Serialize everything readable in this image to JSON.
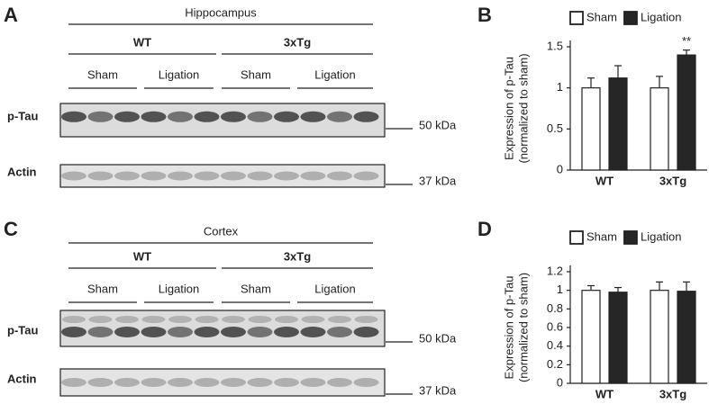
{
  "blots": [
    {
      "panel": "A",
      "title": "Hippocampus",
      "groups": [
        "WT",
        "3xTg"
      ],
      "conditions": [
        "Sham",
        "Ligation",
        "Sham",
        "Ligation"
      ],
      "rows": [
        {
          "label": "p-Tau",
          "marker": "50 kDa"
        },
        {
          "label": "Actin",
          "marker": "37 kDa"
        }
      ]
    },
    {
      "panel": "C",
      "title": "Cortex",
      "groups": [
        "WT",
        "3xTg"
      ],
      "conditions": [
        "Sham",
        "Ligation",
        "Sham",
        "Ligation"
      ],
      "rows": [
        {
          "label": "p-Tau",
          "marker": "50 kDa"
        },
        {
          "label": "Actin",
          "marker": "37 kDa"
        }
      ]
    }
  ],
  "chart_data": [
    {
      "panel": "B",
      "type": "bar",
      "ylabel": [
        "Expression of p-Tau",
        "(normalized to sham)"
      ],
      "categories": [
        "WT",
        "3xTg"
      ],
      "series": [
        {
          "name": "Sham",
          "color": "#ffffff",
          "values": [
            1,
            1
          ],
          "errors": [
            0.12,
            0.14
          ]
        },
        {
          "name": "Ligation",
          "color": "#262626",
          "values": [
            1.12,
            1.4
          ],
          "errors": [
            0.15,
            0.06
          ]
        }
      ],
      "ylim": [
        0,
        1.5
      ],
      "yticks": [
        0,
        0.5,
        1,
        1.5
      ],
      "annotation": "**"
    },
    {
      "panel": "D",
      "type": "bar",
      "ylabel": [
        "Expression of p-Tau",
        "(normalized to sham)"
      ],
      "categories": [
        "WT",
        "3xTg"
      ],
      "series": [
        {
          "name": "Sham",
          "color": "#ffffff",
          "values": [
            1,
            1
          ],
          "errors": [
            0.05,
            0.09
          ]
        },
        {
          "name": "Ligation",
          "color": "#262626",
          "values": [
            0.98,
            0.99
          ],
          "errors": [
            0.05,
            0.1
          ]
        }
      ],
      "ylim": [
        0,
        1.2
      ],
      "yticks": [
        0,
        0.2,
        0.4,
        0.6,
        0.8,
        1,
        1.2
      ]
    }
  ]
}
